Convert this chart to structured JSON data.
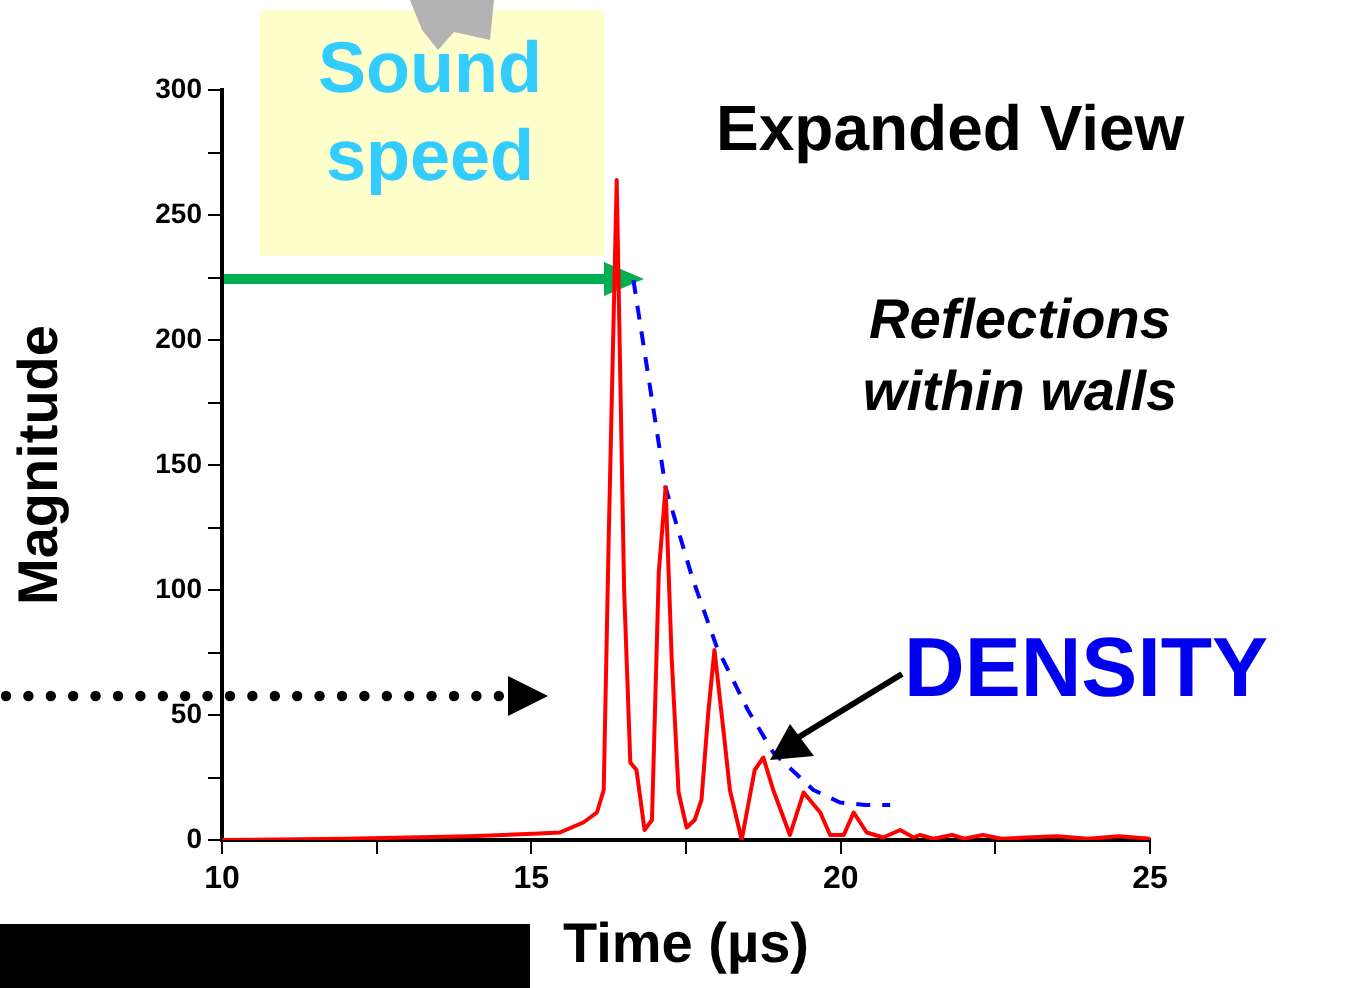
{
  "chart_data": {
    "type": "line",
    "title": "Expanded View",
    "xlabel": "Time (µs)",
    "ylabel": "Magnitude",
    "annotations": [
      "Sound speed",
      "Reflections within walls",
      "DENSITY"
    ],
    "xlim": [
      10,
      25
    ],
    "xticks": [
      10,
      {
        "value": 12.5,
        "label": null
      },
      15,
      {
        "value": 17.5,
        "label": null
      },
      20,
      {
        "value": 22.5,
        "label": null
      },
      25
    ],
    "ylim": [
      0,
      300
    ],
    "yticks": [
      0,
      {
        "value": 25,
        "label": null
      },
      50,
      {
        "value": 75,
        "label": null
      },
      100,
      {
        "value": 125,
        "label": null
      },
      150,
      {
        "value": 175,
        "label": null
      },
      200,
      {
        "value": 225,
        "label": null
      },
      250,
      {
        "value": 275,
        "label": null
      },
      300
    ],
    "marker": "none",
    "legend": false,
    "series": [
      {
        "color": "#ff0000",
        "line_style": "solid",
        "x": [
          10,
          12,
          14,
          15.03,
          15.46,
          15.84,
          16.06,
          16.17,
          16.25,
          16.38,
          16.5,
          16.6,
          16.7,
          16.83,
          16.95,
          17.06,
          17.17,
          17.27,
          17.38,
          17.51,
          17.64,
          17.75,
          17.86,
          17.96,
          18.1,
          18.21,
          18.4,
          18.61,
          18.75,
          18.91,
          19.18,
          19.4,
          19.67,
          19.83,
          20.05,
          20.21,
          20.42,
          20.69,
          20.96,
          21.18,
          21.28,
          21.5,
          21.8,
          22,
          22.3,
          22.6,
          23,
          23.5,
          24,
          24.5,
          25
        ],
        "values": [
          0,
          0.5,
          1.5,
          2.5,
          3,
          7,
          11,
          20,
          120,
          264,
          100,
          31,
          28,
          4,
          8,
          107,
          141,
          72,
          19,
          5,
          8,
          16,
          51,
          76,
          45,
          20,
          0,
          28,
          33,
          20,
          2,
          19,
          11,
          2,
          2,
          11,
          3,
          1,
          4,
          1,
          2,
          0.5,
          2,
          0.5,
          2,
          0.5,
          1,
          1.5,
          0.5,
          1.5,
          0.5
        ]
      },
      {
        "color": "#0000ff",
        "line_style": "dashed",
        "x": [
          16.65,
          17.17,
          17.6,
          18.0,
          18.5,
          18.91,
          19.56,
          19.99,
          20.4,
          20.8
        ],
        "values": [
          224,
          141,
          105,
          77,
          52,
          35,
          20,
          15,
          14,
          14
        ]
      }
    ]
  }
}
